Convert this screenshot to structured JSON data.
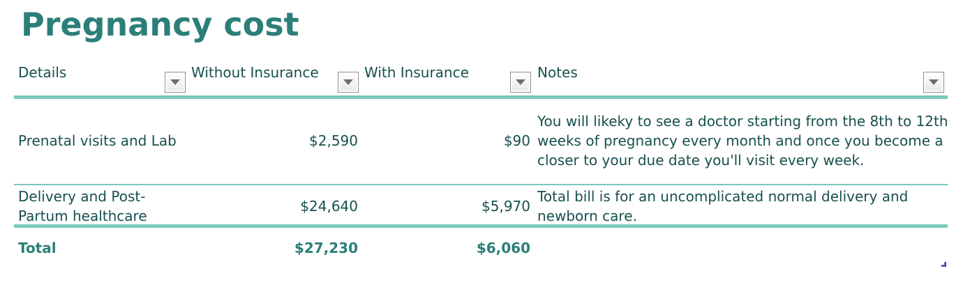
{
  "title": "Pregnancy cost",
  "columns": [
    {
      "label": "Details"
    },
    {
      "label": "Without Insurance"
    },
    {
      "label": "With Insurance"
    },
    {
      "label": "Notes"
    }
  ],
  "rows": [
    {
      "details": "Prenatal visits and Lab",
      "without_insurance": "$2,590",
      "with_insurance": "$90",
      "notes_lines": [
        "You will likeky to see a doctor starting from the 8th to 12th",
        "weeks of pregnancy every month and once you become a",
        "closer to your due date you'll visit every week."
      ]
    },
    {
      "details_lines": [
        "Delivery and Post-",
        "Partum healthcare"
      ],
      "without_insurance": "$24,640",
      "with_insurance": "$5,970",
      "notes_lines": [
        "Total bill is for an uncomplicated normal delivery and",
        "newborn care."
      ]
    }
  ],
  "total": {
    "label": "Total",
    "without_insurance": "$27,230",
    "with_insurance": "$6,060"
  },
  "colors": {
    "title": "#2b7f78",
    "text": "#17504d",
    "rule": "#7ac8bc"
  }
}
